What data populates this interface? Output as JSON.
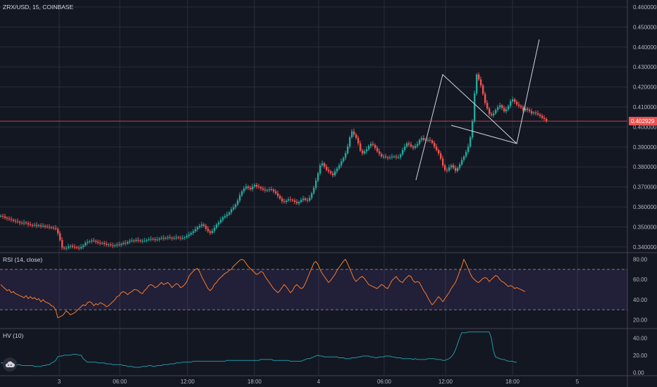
{
  "legends": {
    "main": "ZRX/USD, 15, COINBASE",
    "rsi": "RSI (14, close)",
    "hv": "HV (10)"
  },
  "price_axis": {
    "ticks": [
      "0.460000",
      "0.450000",
      "0.440000",
      "0.430000",
      "0.420000",
      "0.410000",
      "0.400000",
      "0.390000",
      "0.380000",
      "0.370000",
      "0.360000",
      "0.350000",
      "0.340000"
    ],
    "last_price": "0.402929",
    "last_price_color": "#ef5350"
  },
  "rsi_axis": {
    "ticks": [
      "80.00",
      "60.00",
      "40.00",
      "20.00"
    ],
    "upper_band": 70,
    "lower_band": 30
  },
  "hv_axis": {
    "ticks": [
      "40.00",
      "20.00",
      "0.00"
    ]
  },
  "time_axis": [
    "3",
    "06:00",
    "12:00",
    "18:00",
    "4",
    "06:00",
    "12:00",
    "18:00",
    "5"
  ],
  "colors": {
    "background": "#131722",
    "grid": "#2a2e39",
    "up": "#26a69a",
    "down": "#ef5350",
    "rsi_line": "#f57c2c",
    "rsi_band": "#7e57c2",
    "hv_line": "#2196a3",
    "drawing": "#d1d4dc"
  },
  "icons": {
    "logo": "tradingview-cloud-icon"
  },
  "chart_data": [
    {
      "type": "candlestick",
      "title": "ZRX/USD, 15, COINBASE",
      "ylim": [
        0.3375,
        0.4635
      ],
      "grid": true,
      "close_series": [
        0.3555,
        0.3552,
        0.3545,
        0.3542,
        0.3538,
        0.3535,
        0.353,
        0.3528,
        0.3525,
        0.352,
        0.3518,
        0.3522,
        0.3518,
        0.3512,
        0.351,
        0.3508,
        0.351,
        0.3505,
        0.3508,
        0.3503,
        0.3505,
        0.3502,
        0.35,
        0.3498,
        0.3496,
        0.3495,
        0.349,
        0.3468,
        0.3435,
        0.3396,
        0.3392,
        0.3395,
        0.3402,
        0.3405,
        0.34,
        0.3398,
        0.3396,
        0.3393,
        0.34,
        0.3408,
        0.342,
        0.3425,
        0.3428,
        0.3432,
        0.343,
        0.3425,
        0.342,
        0.3418,
        0.342,
        0.3415,
        0.341,
        0.3412,
        0.3408,
        0.3405,
        0.3408,
        0.3412,
        0.341,
        0.3415,
        0.342,
        0.3418,
        0.3425,
        0.343,
        0.3432,
        0.343,
        0.3435,
        0.3432,
        0.3428,
        0.343,
        0.3432,
        0.3435,
        0.3438,
        0.344,
        0.3438,
        0.3435,
        0.3437,
        0.3442,
        0.3445,
        0.3442,
        0.3445,
        0.3448,
        0.3445,
        0.3442,
        0.3445,
        0.3448,
        0.3445,
        0.3442,
        0.3445,
        0.3448,
        0.3455,
        0.3462,
        0.347,
        0.3478,
        0.3488,
        0.3498,
        0.3505,
        0.3512,
        0.3505,
        0.349,
        0.3478,
        0.347,
        0.348,
        0.3495,
        0.3512,
        0.3522,
        0.3535,
        0.3548,
        0.3555,
        0.3562,
        0.3572,
        0.3588,
        0.3598,
        0.3612,
        0.3632,
        0.3658,
        0.3678,
        0.3692,
        0.3702,
        0.3695,
        0.3688,
        0.3702,
        0.371,
        0.3702,
        0.3698,
        0.3692,
        0.3686,
        0.3682,
        0.3684,
        0.3688,
        0.3686,
        0.3678,
        0.3668,
        0.3655,
        0.3642,
        0.3628,
        0.3625,
        0.3632,
        0.3638,
        0.3635,
        0.3632,
        0.3625,
        0.3618,
        0.3625,
        0.3635,
        0.3642,
        0.3635,
        0.3632,
        0.3645,
        0.3668,
        0.3695,
        0.3732,
        0.3768,
        0.3808,
        0.3818,
        0.3802,
        0.3785,
        0.3778,
        0.3768,
        0.3758,
        0.3778,
        0.3792,
        0.3808,
        0.3828,
        0.3845,
        0.3868,
        0.3902,
        0.3948,
        0.3978,
        0.3962,
        0.3945,
        0.3918,
        0.3882,
        0.3868,
        0.3878,
        0.3888,
        0.3905,
        0.3915,
        0.391,
        0.3895,
        0.3878,
        0.3865,
        0.3852,
        0.3852,
        0.3848,
        0.3845,
        0.3848,
        0.3852,
        0.3852,
        0.3848,
        0.3848,
        0.3862,
        0.3885,
        0.3902,
        0.3918,
        0.3912,
        0.3902,
        0.3895,
        0.3905,
        0.3915,
        0.3935,
        0.3945,
        0.3935,
        0.3932,
        0.3935,
        0.3932,
        0.392,
        0.3902,
        0.3885,
        0.3868,
        0.3842,
        0.3808,
        0.3785,
        0.3782,
        0.3798,
        0.3808,
        0.3795,
        0.378,
        0.3795,
        0.3812,
        0.3835,
        0.3852,
        0.3875,
        0.3902,
        0.3948,
        0.4028,
        0.4168,
        0.4262,
        0.4238,
        0.4208,
        0.4165,
        0.412,
        0.4092,
        0.4065,
        0.4058,
        0.4068,
        0.4085,
        0.4098,
        0.4108,
        0.4095,
        0.4078,
        0.4088,
        0.4105,
        0.4128,
        0.4138,
        0.4125,
        0.4112,
        0.4105,
        0.4098,
        0.4082,
        0.4092,
        0.4085,
        0.4078,
        0.4068,
        0.4072,
        0.4068,
        0.4062,
        0.4055,
        0.4045,
        0.404,
        0.4029
      ]
    },
    {
      "type": "line",
      "title": "RSI (14, close)",
      "ylim": [
        12,
        86
      ],
      "values": [
        55,
        53,
        51,
        49,
        50,
        47,
        48,
        46,
        45,
        44,
        43,
        42,
        44,
        41,
        43,
        41,
        42,
        40,
        41,
        38,
        40,
        38,
        37,
        36,
        34,
        33,
        30,
        22,
        23,
        24,
        26,
        29,
        27,
        25,
        26,
        27,
        29,
        31,
        33,
        35,
        34,
        37,
        38,
        37,
        34,
        36,
        35,
        37,
        36,
        35,
        33,
        34,
        36,
        38,
        40,
        43,
        44,
        47,
        48,
        47,
        45,
        47,
        48,
        50,
        50,
        49,
        47,
        46,
        49,
        51,
        54,
        55,
        54,
        52,
        53,
        55,
        57,
        55,
        56,
        57,
        55,
        52,
        54,
        56,
        55,
        52,
        53,
        55,
        58,
        63,
        66,
        68,
        70,
        71,
        68,
        63,
        59,
        55,
        51,
        49,
        51,
        55,
        57,
        60,
        62,
        64,
        66,
        67,
        69,
        70,
        73,
        75,
        77,
        79,
        80,
        79,
        76,
        73,
        71,
        69,
        67,
        65,
        66,
        68,
        67,
        63,
        60,
        57,
        54,
        51,
        49,
        47,
        49,
        52,
        55,
        53,
        50,
        47,
        49,
        53,
        55,
        53,
        51,
        52,
        56,
        61,
        66,
        71,
        76,
        78,
        75,
        70,
        66,
        63,
        60,
        57,
        59,
        62,
        65,
        69,
        72,
        75,
        78,
        80,
        76,
        71,
        66,
        61,
        58,
        60,
        62,
        63,
        61,
        58,
        55,
        54,
        53,
        52,
        51,
        53,
        55,
        54,
        52,
        51,
        55,
        59,
        61,
        63,
        60,
        58,
        57,
        60,
        62,
        64,
        63,
        59,
        57,
        58,
        57,
        53,
        49,
        46,
        42,
        38,
        35,
        37,
        40,
        43,
        41,
        38,
        41,
        44,
        47,
        51,
        54,
        57,
        62,
        68,
        73,
        80,
        76,
        71,
        66,
        62,
        60,
        58,
        57,
        59,
        61,
        62,
        61,
        58,
        60,
        62,
        64,
        63,
        60,
        58,
        57,
        55,
        53,
        54,
        53,
        51,
        52,
        51,
        50,
        49,
        48
      ]
    },
    {
      "type": "line",
      "title": "HV (10)",
      "ylim": [
        -3,
        50
      ],
      "values": [
        11,
        11,
        11,
        11,
        10,
        10,
        9,
        9,
        9,
        9,
        8,
        8,
        8,
        8,
        8,
        8,
        7,
        7,
        7,
        7,
        8,
        8,
        9,
        9,
        11,
        12,
        14,
        18,
        19,
        19,
        20,
        20,
        20,
        20,
        21,
        21,
        21,
        20,
        20,
        16,
        14,
        12,
        12,
        12,
        12,
        12,
        11,
        11,
        11,
        11,
        10,
        10,
        10,
        9,
        9,
        9,
        9,
        9,
        8,
        8,
        7,
        7,
        7,
        6,
        6,
        6,
        6,
        7,
        7,
        7,
        8,
        8,
        7,
        7,
        8,
        8,
        8,
        9,
        9,
        9,
        10,
        10,
        10,
        11,
        11,
        11,
        12,
        12,
        12,
        12,
        12,
        13,
        13,
        13,
        13,
        13,
        13,
        13,
        13,
        13,
        13,
        13,
        13,
        13,
        13,
        13,
        13,
        14,
        14,
        14,
        14,
        14,
        14,
        14,
        14,
        14,
        14,
        14,
        14,
        14,
        14,
        14,
        14,
        15,
        15,
        15,
        15,
        15,
        15,
        14,
        14,
        14,
        14,
        14,
        14,
        14,
        14,
        13,
        13,
        13,
        13,
        13,
        13,
        14,
        15,
        16,
        16,
        17,
        18,
        19,
        20,
        19,
        19,
        18,
        18,
        18,
        18,
        18,
        18,
        18,
        17,
        17,
        17,
        16,
        16,
        16,
        17,
        17,
        17,
        18,
        18,
        19,
        19,
        19,
        19,
        18,
        18,
        17,
        17,
        18,
        18,
        18,
        19,
        19,
        19,
        18,
        18,
        17,
        17,
        17,
        16,
        16,
        16,
        16,
        16,
        15,
        16,
        15,
        15,
        15,
        15,
        15,
        16,
        16,
        16,
        16,
        15,
        15,
        15,
        14,
        14,
        15,
        16,
        18,
        21,
        26,
        33,
        40,
        46,
        46,
        46,
        47,
        47,
        47,
        47,
        47,
        47,
        47,
        47,
        47,
        47,
        47,
        40,
        25,
        18,
        17,
        16,
        15,
        15,
        14,
        13,
        13,
        13,
        12,
        12
      ]
    }
  ]
}
